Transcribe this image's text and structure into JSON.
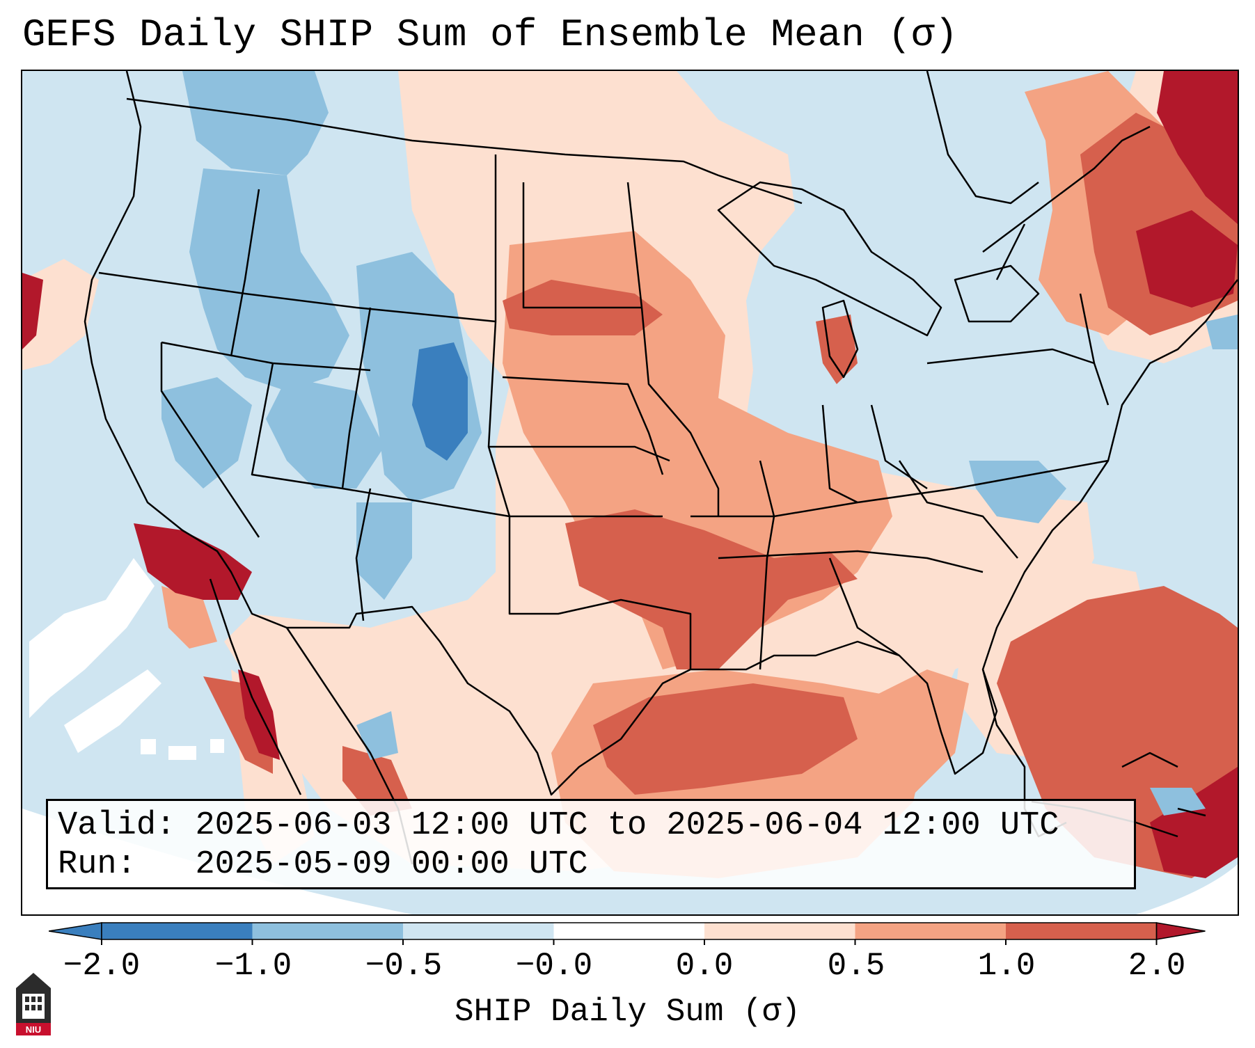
{
  "title": "GEFS Daily SHIP Sum of Ensemble Mean (σ)",
  "info": {
    "valid_label": "Valid:",
    "valid_value": "2025-06-03 12:00 UTC to 2025-06-04 12:00 UTC",
    "run_label": "Run:",
    "run_value": "2025-05-09 00:00 UTC"
  },
  "colorbar": {
    "label": "SHIP Daily Sum (σ)",
    "ticks": [
      "−2.0",
      "−1.0",
      "−0.5",
      "−0.0",
      "0.0",
      "0.5",
      "1.0",
      "2.0"
    ],
    "colors": [
      "#3a7fbe",
      "#8ec0de",
      "#cfe5f1",
      "#ffffff",
      "#fde0d0",
      "#f4a383",
      "#d6604d",
      "#b2182b"
    ],
    "extend": "both"
  },
  "logo": {
    "text": "NIU",
    "icon": "niu-logo-icon"
  },
  "colors": {
    "ocean": "#cfe5f1",
    "dark_blue": "#3a7fbe",
    "mid_blue": "#8ec0de",
    "light_blue": "#cfe5f1",
    "white": "#ffffff",
    "light_red": "#fde0d0",
    "mid_red": "#f4a383",
    "red": "#d6604d",
    "dark_red": "#b2182b"
  }
}
